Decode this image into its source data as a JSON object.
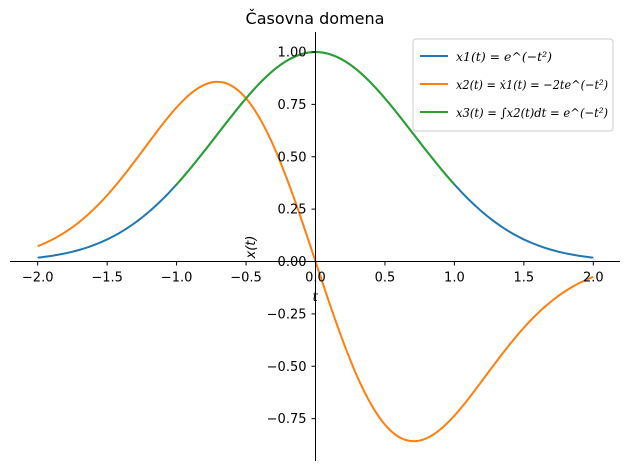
{
  "chart_data": {
    "type": "line",
    "title": "Časovna domena",
    "xlabel": "t",
    "ylabel": "x(t)",
    "xlim": [
      -2.2,
      2.2
    ],
    "ylim": [
      -0.95,
      1.1
    ],
    "x_ticks": [
      -2.0,
      -1.5,
      -1.0,
      -0.5,
      0.0,
      0.5,
      1.0,
      1.5,
      2.0
    ],
    "x_tick_labels": [
      "−2.0",
      "−1.5",
      "−1.0",
      "−0.5",
      "0.0",
      "0.5",
      "1.0",
      "1.5",
      "2.0"
    ],
    "y_ticks": [
      -0.75,
      -0.5,
      -0.25,
      0.0,
      0.25,
      0.5,
      0.75,
      1.0
    ],
    "y_tick_labels": [
      "−0.75",
      "−0.50",
      "−0.25",
      "0.00",
      "0.25",
      "0.50",
      "0.75",
      "1.00"
    ],
    "grid": false,
    "legend_position": "top-right",
    "series": [
      {
        "name": "x1(t) = e^(−t²)",
        "color": "#1f77b4",
        "x": [
          -2.0,
          -1.75,
          -1.5,
          -1.25,
          -1.0,
          -0.75,
          -0.5,
          -0.25,
          0.0,
          0.25,
          0.5,
          0.75,
          1.0,
          1.25,
          1.5,
          1.75,
          2.0
        ],
        "values": [
          0.018,
          0.047,
          0.105,
          0.21,
          0.368,
          0.57,
          0.779,
          0.939,
          1.0,
          0.939,
          0.779,
          0.57,
          0.368,
          0.21,
          0.105,
          0.047,
          0.018
        ]
      },
      {
        "name": "x2(t) = ẋ1(t) = −2te^(−t²)",
        "color": "#ff7f0e",
        "x": [
          -2.0,
          -1.75,
          -1.5,
          -1.25,
          -1.0,
          -0.75,
          -0.707,
          -0.5,
          -0.25,
          0.0,
          0.25,
          0.5,
          0.707,
          0.75,
          1.0,
          1.25,
          1.5,
          1.75,
          2.0
        ],
        "values": [
          0.073,
          0.164,
          0.316,
          0.524,
          0.736,
          0.855,
          0.858,
          0.779,
          0.47,
          0.0,
          -0.47,
          -0.779,
          -0.858,
          -0.855,
          -0.736,
          -0.524,
          -0.316,
          -0.164,
          -0.073
        ]
      },
      {
        "name": "x3(t) = ∫x2(t)dt = e^(−t²)",
        "color": "#2ca02c",
        "x": [
          -1.0,
          -0.75,
          -0.5,
          -0.25,
          0.0,
          0.25,
          0.5,
          0.75,
          1.0
        ],
        "values": [
          0.368,
          0.57,
          0.779,
          0.939,
          1.0,
          0.939,
          0.779,
          0.57,
          0.368
        ]
      }
    ]
  }
}
